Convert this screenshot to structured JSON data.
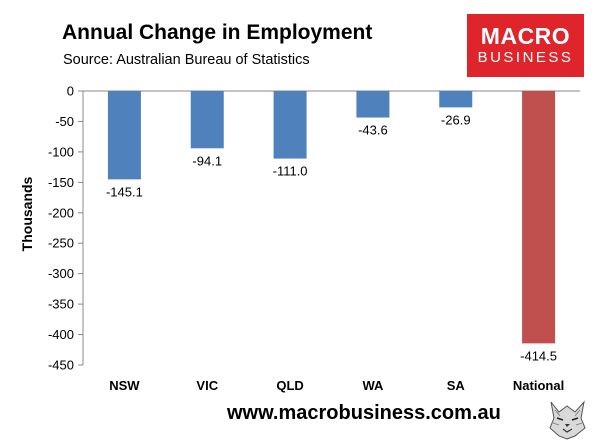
{
  "header": {
    "title": "Annual Change in Employment",
    "subtitle": "Source: Australian Bureau of Statistics"
  },
  "logo": {
    "line1": "MACRO",
    "line2": "BUSINESS",
    "color": "#e0242b"
  },
  "footer": {
    "url": "www.macrobusiness.com.au",
    "icon": "wolf-logo-icon"
  },
  "chart_data": {
    "type": "bar",
    "title": "Annual Change in Employment",
    "ylabel": "Thousands",
    "xlabel": "",
    "categories": [
      "NSW",
      "VIC",
      "QLD",
      "WA",
      "SA",
      "National"
    ],
    "values": [
      -145.1,
      -94.1,
      -111.0,
      -43.6,
      -26.9,
      -414.5
    ],
    "data_labels": [
      "-145.1",
      "-94.1",
      "-111.0",
      "-43.6",
      "-26.9",
      "-414.5"
    ],
    "bar_colors": [
      "#4f81bd",
      "#4f81bd",
      "#4f81bd",
      "#4f81bd",
      "#4f81bd",
      "#c0504d"
    ],
    "ylim": [
      -450,
      0
    ],
    "yticks": [
      0,
      -50,
      -100,
      -150,
      -200,
      -250,
      -300,
      -350,
      -400,
      -450
    ],
    "ytick_labels": [
      "0",
      "-50",
      "-100",
      "-150",
      "-200",
      "-250",
      "-300",
      "-350",
      "-400",
      "-450"
    ],
    "grid": false,
    "legend": "none"
  }
}
